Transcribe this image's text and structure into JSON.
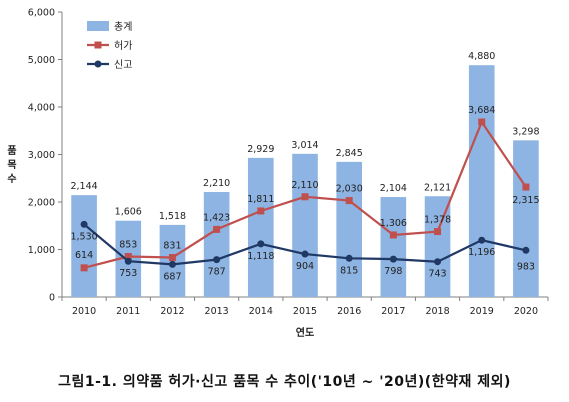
{
  "chart_data": {
    "type": "bar",
    "categories": [
      "2010",
      "2011",
      "2012",
      "2013",
      "2014",
      "2015",
      "2016",
      "2017",
      "2018",
      "2019",
      "2020"
    ],
    "xlabel": "연도",
    "ylabel": "품목 수",
    "ylim": [
      0,
      6000
    ],
    "yticks": [
      "0",
      "1,000",
      "2,000",
      "3,000",
      "4,000",
      "5,000",
      "6,000"
    ],
    "grid": false,
    "legend_position": "top-left",
    "series": [
      {
        "name": "총계",
        "kind": "bar",
        "color": "#8EB4E3",
        "values": [
          2144,
          1606,
          1518,
          2210,
          2929,
          3014,
          2845,
          2104,
          2121,
          4880,
          3298
        ],
        "labels": [
          "2,144",
          "1,606",
          "1,518",
          "2,210",
          "2,929",
          "3,014",
          "2,845",
          "2,104",
          "2,121",
          "4,880",
          "3,298"
        ]
      },
      {
        "name": "허가",
        "kind": "line",
        "marker": "square",
        "color": "#C0504D",
        "values": [
          614,
          853,
          831,
          1423,
          1811,
          2110,
          2030,
          1306,
          1378,
          3684,
          2315
        ],
        "labels": [
          "614",
          "853",
          "831",
          "1,423",
          "1,811",
          "2,110",
          "2,030",
          "1,306",
          "1,378",
          "3,684",
          "2,315"
        ]
      },
      {
        "name": "신고",
        "kind": "line",
        "marker": "circle",
        "color": "#1F3864",
        "values": [
          1530,
          753,
          687,
          787,
          1118,
          904,
          815,
          798,
          743,
          1196,
          983
        ],
        "labels": [
          "1,530",
          "753",
          "687",
          "787",
          "1,118",
          "904",
          "815",
          "798",
          "743",
          "1,196",
          "983"
        ]
      }
    ]
  },
  "caption": "그림1-1. 의약품 허가·신고 품목 수 추이('10년 ~ '20년)(한약재 제외)"
}
